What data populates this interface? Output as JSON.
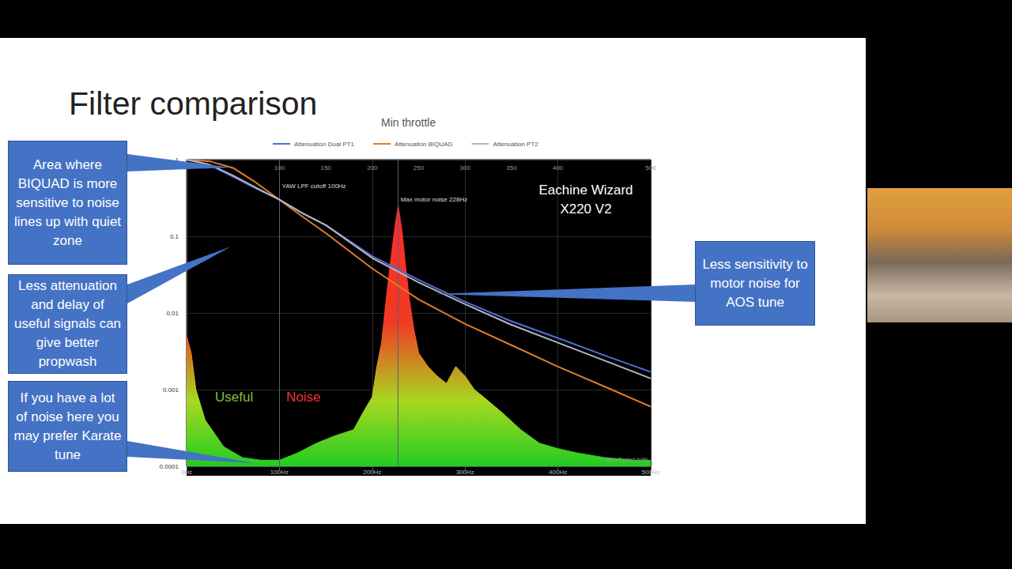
{
  "slide": {
    "title": "Filter comparison",
    "callouts": [
      "Area where BIQUAD is more sensitive to noise lines up with quiet zone",
      "Less attenuation and delay of useful signals can give better propwash",
      "If you have a lot of noise here you may prefer Karate tune",
      "Less sensitivity to motor noise for AOS tune"
    ],
    "inset_label": "Eachine Wizard X220 V2"
  },
  "chart_data": {
    "type": "line",
    "title": "Min throttle",
    "x": [
      0,
      25,
      50,
      75,
      100,
      125,
      150,
      200,
      250,
      300,
      350,
      400,
      450,
      500
    ],
    "series": [
      {
        "name": "Attenuation Dual PT1",
        "color": "#4f6fd0",
        "values": [
          1,
          0.85,
          0.6,
          0.42,
          0.3,
          0.2,
          0.14,
          0.055,
          0.027,
          0.014,
          0.0078,
          0.0047,
          0.0028,
          0.0017
        ]
      },
      {
        "name": "Attenuation BIQUAD",
        "color": "#e07b2a",
        "values": [
          1,
          0.95,
          0.78,
          0.5,
          0.3,
          0.18,
          0.11,
          0.038,
          0.015,
          0.0072,
          0.0038,
          0.002,
          0.0011,
          0.0006
        ]
      },
      {
        "name": "Attenuation PT2",
        "color": "#b4b4c4",
        "values": [
          1,
          0.86,
          0.62,
          0.43,
          0.3,
          0.2,
          0.14,
          0.052,
          0.025,
          0.013,
          0.007,
          0.0041,
          0.0024,
          0.0014
        ]
      },
      {
        "name": "Gyro Scaled (roll)",
        "type": "area",
        "color": "#22cc22",
        "x": [
          0,
          5,
          10,
          20,
          40,
          60,
          80,
          100,
          120,
          140,
          160,
          180,
          190,
          200,
          205,
          210,
          215,
          220,
          225,
          228,
          232,
          236,
          240,
          245,
          250,
          260,
          270,
          280,
          290,
          300,
          310,
          320,
          340,
          360,
          380,
          400,
          420,
          450,
          480,
          500
        ],
        "values": [
          0.005,
          0.003,
          0.001,
          0.0004,
          0.00018,
          0.00013,
          0.00012,
          0.00012,
          0.00015,
          0.0002,
          0.00025,
          0.0003,
          0.0005,
          0.0008,
          0.002,
          0.004,
          0.015,
          0.05,
          0.15,
          0.25,
          0.12,
          0.04,
          0.015,
          0.006,
          0.003,
          0.002,
          0.0015,
          0.0012,
          0.002,
          0.0015,
          0.001,
          0.0008,
          0.0005,
          0.0003,
          0.0002,
          0.00017,
          0.00015,
          0.00013,
          0.00012,
          0.00012
        ]
      }
    ],
    "markers": [
      {
        "x": 100,
        "label": "YAW LPF cutoff 100Hz"
      },
      {
        "x": 228,
        "label": "Max motor noise 228Hz"
      }
    ],
    "annotations": [
      {
        "text": "Useful",
        "color": "#7dc242"
      },
      {
        "text": "Noise",
        "color": "#e8313a"
      }
    ],
    "xlim": [
      0,
      500
    ],
    "xticks": [
      {
        "value": 0,
        "label": "0Hz"
      },
      {
        "value": 100,
        "label": "100Hz"
      },
      {
        "value": 200,
        "label": "200Hz"
      },
      {
        "value": 300,
        "label": "300Hz"
      },
      {
        "value": 400,
        "label": "400Hz"
      },
      {
        "value": 500,
        "label": "500Hz"
      }
    ],
    "x2ticks": [
      100,
      150,
      200,
      250,
      300,
      350,
      400,
      500
    ],
    "ylim": [
      0.0001,
      1
    ],
    "yticks": [
      0.0001,
      0.001,
      0.01,
      0.1,
      1
    ],
    "log": "y",
    "grid": true,
    "legend": "top"
  }
}
